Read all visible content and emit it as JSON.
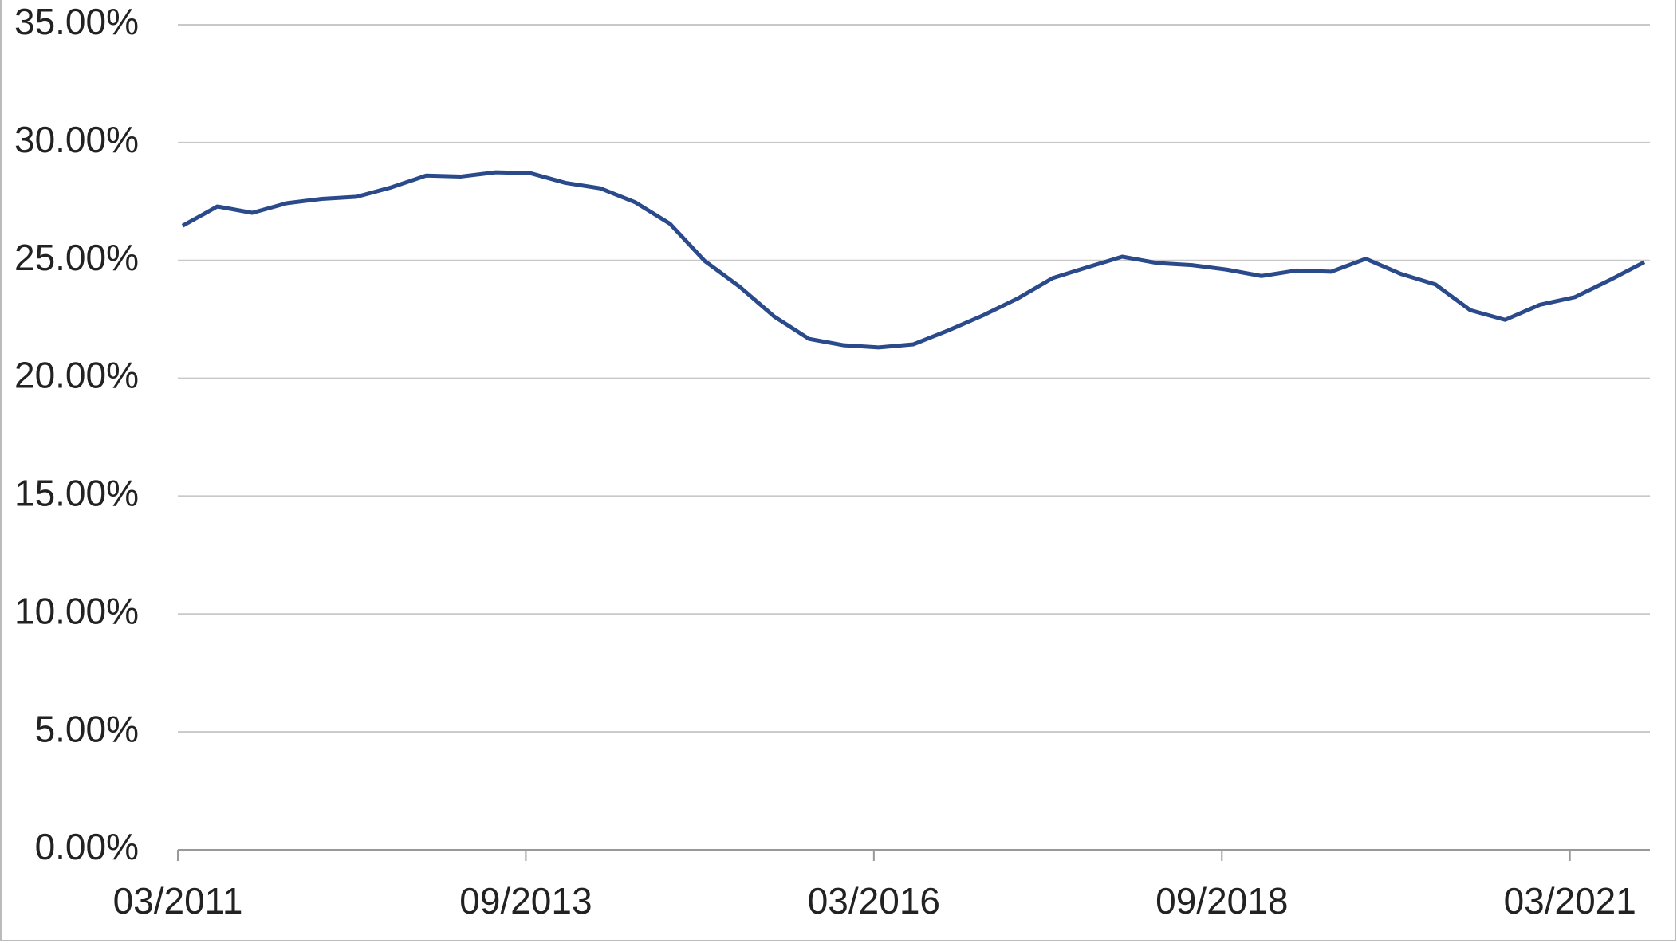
{
  "chart_data": {
    "type": "line",
    "categories": [
      "03/2011",
      null,
      null,
      null,
      null,
      null,
      null,
      null,
      null,
      null,
      "09/2013",
      null,
      null,
      null,
      null,
      null,
      null,
      null,
      null,
      null,
      "03/2016",
      null,
      null,
      null,
      null,
      null,
      null,
      null,
      null,
      null,
      "09/2018",
      null,
      null,
      null,
      null,
      null,
      null,
      null,
      null,
      null,
      "03/2021",
      null,
      null
    ],
    "series": [
      {
        "color": "#2a4a8c",
        "values": [
          26.47,
          27.29,
          27.02,
          27.43,
          27.61,
          27.7,
          28.1,
          28.6,
          28.56,
          28.74,
          28.7,
          28.29,
          28.06,
          27.47,
          26.56,
          24.98,
          23.89,
          22.62,
          21.67,
          21.4,
          21.31,
          21.44,
          22.03,
          22.67,
          23.39,
          24.25,
          24.71,
          25.16,
          24.89,
          24.8,
          24.61,
          24.34,
          24.57,
          24.52,
          25.07,
          24.43,
          23.98,
          22.89,
          22.48,
          23.12,
          23.44,
          24.16,
          24.93
        ]
      }
    ],
    "ylim": [
      0,
      35
    ],
    "yticks": [
      {
        "value": 0,
        "label": "0.00%"
      },
      {
        "value": 5,
        "label": "5.00%"
      },
      {
        "value": 10,
        "label": "10.00%"
      },
      {
        "value": 15,
        "label": "15.00%"
      },
      {
        "value": 20,
        "label": "20.00%"
      },
      {
        "value": 25,
        "label": "25.00%"
      },
      {
        "value": 30,
        "label": "30.00%"
      },
      {
        "value": 35,
        "label": "35.00%"
      }
    ],
    "grid": true
  }
}
